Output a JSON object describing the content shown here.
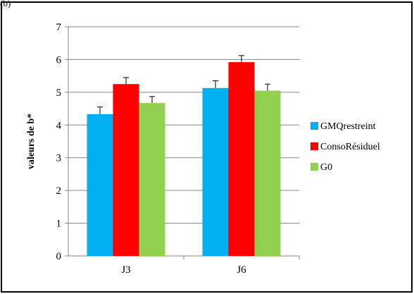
{
  "figure": {
    "corner_label": "(b)"
  },
  "chart_data": {
    "type": "bar",
    "title": "",
    "xlabel": "",
    "ylabel": "valeurs de b*",
    "ylim": [
      0,
      7
    ],
    "yticks": [
      0,
      1,
      2,
      3,
      4,
      5,
      6,
      7
    ],
    "categories": [
      "J3",
      "J6"
    ],
    "series": [
      {
        "name": "GMQrestreint",
        "color": "#00B0F0",
        "values": [
          4.33,
          5.13
        ],
        "errors": [
          0.22,
          0.22
        ]
      },
      {
        "name": "ConsoRésiduel",
        "color": "#FF0000",
        "values": [
          5.25,
          5.92
        ],
        "errors": [
          0.2,
          0.2
        ]
      },
      {
        "name": "G0",
        "color": "#92D050",
        "values": [
          4.67,
          5.05
        ],
        "errors": [
          0.2,
          0.2
        ]
      }
    ],
    "grid": true,
    "legend_position": "right"
  }
}
